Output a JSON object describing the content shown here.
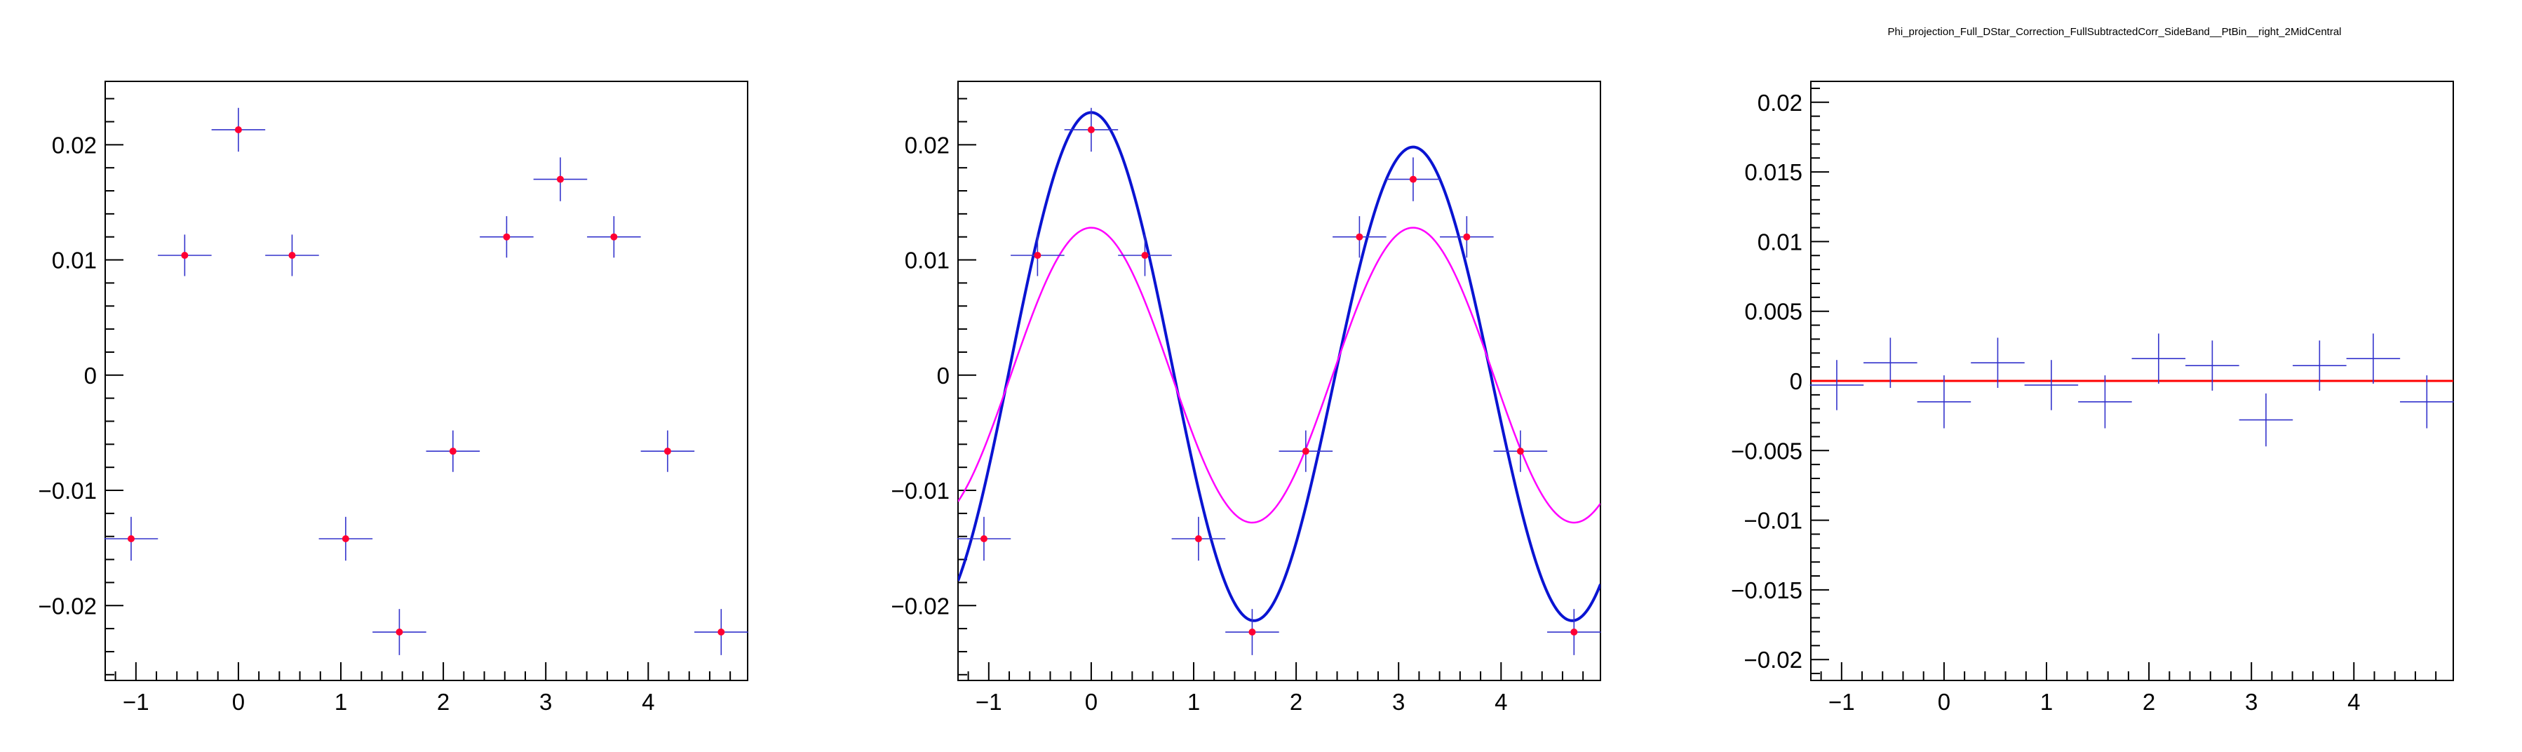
{
  "title": "Phi_projection_Full_DStar_Correction_FullSubtractedCorr_SideBand__PtBin__right_2MidCentral",
  "colors": {
    "errorbar": "#3333cc",
    "marker": "#ff0033",
    "fit_total": "#0a14d2",
    "fit_component": "#ff00ff",
    "baseline": "#ff0000"
  },
  "chart_data": [
    {
      "type": "scatter",
      "panel": "left",
      "title": "",
      "xlabel": "",
      "ylabel": "",
      "xlim": [
        -1.3,
        4.97
      ],
      "ylim": [
        -0.0265,
        0.0255
      ],
      "grid": false,
      "legend": "none",
      "xticks": [
        -1,
        0,
        1,
        2,
        3,
        4
      ],
      "xtick_labels": [
        "−1",
        "0",
        "1",
        "2",
        "3",
        "4"
      ],
      "yticks": [
        -0.02,
        -0.01,
        0,
        0.01,
        0.02
      ],
      "ytick_labels": [
        "−0.02",
        "−0.01",
        "0",
        "0.01",
        "0.02"
      ],
      "series": [
        {
          "x": [
            -1.047,
            -0.524,
            0,
            0.524,
            1.047,
            1.571,
            2.094,
            2.618,
            3.142,
            3.665,
            4.189,
            4.712
          ],
          "x_err": 0.262,
          "y": [
            -0.0142,
            0.0104,
            0.0213,
            0.0104,
            -0.0142,
            -0.0223,
            -0.0066,
            0.012,
            0.017,
            0.012,
            -0.0066,
            -0.0223
          ],
          "y_err": [
            0.0019,
            0.0018,
            0.0019,
            0.0018,
            0.0019,
            0.002,
            0.0018,
            0.0018,
            0.0019,
            0.0018,
            0.0018,
            0.002
          ]
        }
      ]
    },
    {
      "type": "scatter",
      "panel": "middle",
      "title": "",
      "xlabel": "",
      "ylabel": "",
      "xlim": [
        -1.3,
        4.97
      ],
      "ylim": [
        -0.0265,
        0.0255
      ],
      "grid": false,
      "legend": "none",
      "xticks": [
        -1,
        0,
        1,
        2,
        3,
        4
      ],
      "xtick_labels": [
        "−1",
        "0",
        "1",
        "2",
        "3",
        "4"
      ],
      "yticks": [
        -0.02,
        -0.01,
        0,
        0.01,
        0.02
      ],
      "ytick_labels": [
        "−0.02",
        "−0.01",
        "0",
        "0.01",
        "0.02"
      ],
      "series": [
        {
          "x": [
            -1.047,
            -0.524,
            0,
            0.524,
            1.047,
            1.571,
            2.094,
            2.618,
            3.142,
            3.665,
            4.189,
            4.712
          ],
          "x_err": 0.262,
          "y": [
            -0.0142,
            0.0104,
            0.0213,
            0.0104,
            -0.0142,
            -0.0223,
            -0.0066,
            0.012,
            0.017,
            0.012,
            -0.0066,
            -0.0223
          ],
          "y_err": [
            0.0019,
            0.0018,
            0.0019,
            0.0018,
            0.0019,
            0.002,
            0.0018,
            0.0018,
            0.0019,
            0.0018,
            0.0018,
            0.002
          ]
        }
      ],
      "curves": [
        {
          "kind": "fit_total",
          "form": "a1*cos(2x) + a2*cos(x)",
          "a1": 0.0213,
          "a2": 0.0015,
          "stroke_width": 4
        },
        {
          "kind": "fit_component",
          "form": "a*cos(2x)",
          "a": 0.0128,
          "stroke_width": 2.5
        }
      ]
    },
    {
      "type": "scatter",
      "panel": "right",
      "title": "",
      "xlabel": "",
      "ylabel": "",
      "xlim": [
        -1.3,
        4.97
      ],
      "ylim": [
        -0.0215,
        0.0215
      ],
      "grid": false,
      "legend": "none",
      "xticks": [
        -1,
        0,
        1,
        2,
        3,
        4
      ],
      "xtick_labels": [
        "−1",
        "0",
        "1",
        "2",
        "3",
        "4"
      ],
      "yticks": [
        -0.02,
        -0.015,
        -0.01,
        -0.005,
        0,
        0.005,
        0.01,
        0.015,
        0.02
      ],
      "ytick_labels": [
        "−0.02",
        "−0.015",
        "−0.01",
        "−0.005",
        "0",
        "0.005",
        "0.01",
        "0.015",
        "0.02"
      ],
      "series": [
        {
          "x": [
            -1.047,
            -0.524,
            0,
            0.524,
            1.047,
            1.571,
            2.094,
            2.618,
            3.142,
            3.665,
            4.189,
            4.712
          ],
          "x_err": 0.262,
          "y": [
            -0.0003,
            0.0013,
            -0.0015,
            0.0013,
            -0.0003,
            -0.0015,
            0.0016,
            0.0011,
            -0.0028,
            0.0011,
            0.0016,
            -0.0015
          ],
          "y_err": [
            0.0018,
            0.0018,
            0.0019,
            0.0018,
            0.0018,
            0.0019,
            0.0018,
            0.0018,
            0.0019,
            0.0018,
            0.0018,
            0.0019
          ]
        }
      ],
      "curves": [
        {
          "kind": "baseline",
          "form": "constant",
          "value": 0,
          "stroke_width": 3
        }
      ]
    }
  ]
}
